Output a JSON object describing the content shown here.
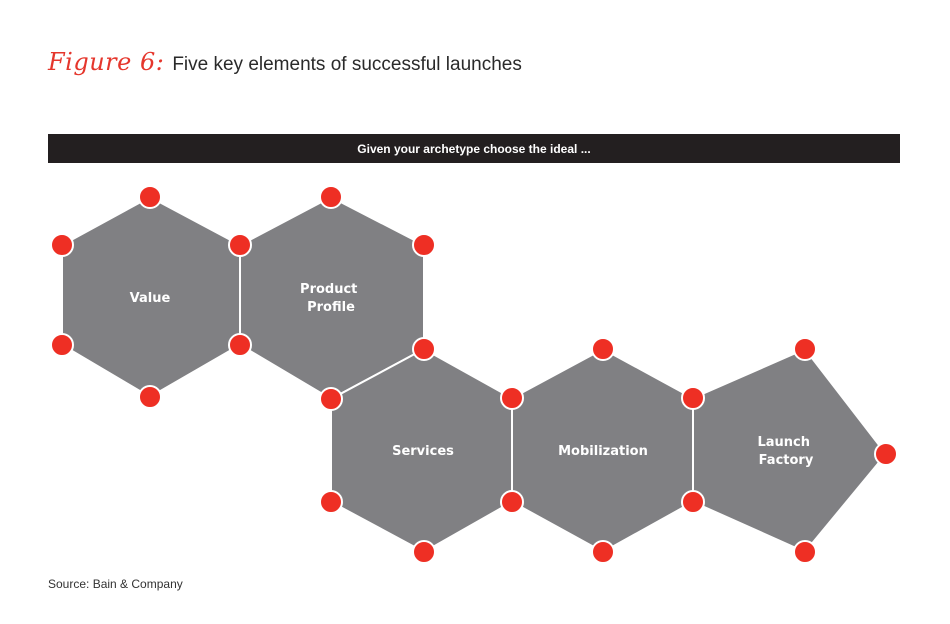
{
  "figure": {
    "label": "Figure 6:",
    "title": "Five key elements of successful launches"
  },
  "banner": {
    "text": "Given your archetype choose the ideal ..."
  },
  "elements": [
    {
      "lines": [
        "Value"
      ]
    },
    {
      "lines": [
        "Product",
        "Profile"
      ]
    },
    {
      "lines": [
        "Services"
      ]
    },
    {
      "lines": [
        "Mobilization"
      ]
    },
    {
      "lines": [
        "Launch",
        "Factory"
      ]
    }
  ],
  "colors": {
    "accent": "#ee2f24",
    "shape_fill": "#808083",
    "banner_bg": "#231f20"
  },
  "source": "Source: Bain & Company"
}
